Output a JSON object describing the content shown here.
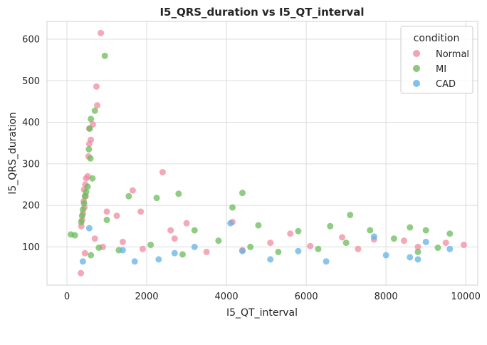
{
  "chart_data": {
    "type": "scatter",
    "title": "I5_QRS_duration vs I5_QT_interval",
    "xlabel": "I5_QT_interval",
    "ylabel": "I5_QRS_duration",
    "xlim": [
      -500,
      10300
    ],
    "ylim": [
      8,
      643
    ],
    "xticks": [
      0,
      2000,
      4000,
      6000,
      8000,
      10000
    ],
    "yticks": [
      100,
      200,
      300,
      400,
      500,
      600
    ],
    "grid": true,
    "legend": {
      "title": "condition",
      "position": "top-right"
    },
    "series": [
      {
        "name": "Normal",
        "color": "#f08ba0",
        "points": [
          [
            850,
            615
          ],
          [
            740,
            486
          ],
          [
            760,
            441
          ],
          [
            650,
            395
          ],
          [
            560,
            385
          ],
          [
            600,
            358
          ],
          [
            560,
            348
          ],
          [
            540,
            318
          ],
          [
            520,
            270
          ],
          [
            480,
            265
          ],
          [
            460,
            250
          ],
          [
            430,
            238
          ],
          [
            470,
            222
          ],
          [
            420,
            210
          ],
          [
            440,
            195
          ],
          [
            400,
            180
          ],
          [
            380,
            165
          ],
          [
            360,
            150
          ],
          [
            350,
            37
          ],
          [
            2400,
            280
          ],
          [
            1650,
            236
          ],
          [
            1850,
            185
          ],
          [
            1000,
            185
          ],
          [
            1250,
            175
          ],
          [
            3000,
            157
          ],
          [
            4150,
            160
          ],
          [
            2600,
            140
          ],
          [
            5600,
            132
          ],
          [
            6900,
            123
          ],
          [
            7700,
            118
          ],
          [
            8450,
            115
          ],
          [
            9500,
            110
          ],
          [
            9950,
            105
          ],
          [
            8800,
            100
          ],
          [
            7300,
            95
          ],
          [
            6100,
            102
          ],
          [
            5100,
            110
          ],
          [
            4400,
            92
          ],
          [
            3500,
            88
          ],
          [
            2700,
            120
          ],
          [
            1900,
            95
          ],
          [
            1400,
            112
          ],
          [
            900,
            100
          ],
          [
            700,
            120
          ],
          [
            450,
            85
          ]
        ]
      },
      {
        "name": "MI",
        "color": "#6abc5a",
        "points": [
          [
            950,
            560
          ],
          [
            700,
            428
          ],
          [
            600,
            408
          ],
          [
            570,
            385
          ],
          [
            550,
            335
          ],
          [
            590,
            313
          ],
          [
            640,
            265
          ],
          [
            520,
            245
          ],
          [
            480,
            232
          ],
          [
            450,
            222
          ],
          [
            430,
            205
          ],
          [
            400,
            190
          ],
          [
            380,
            175
          ],
          [
            360,
            160
          ],
          [
            1550,
            222
          ],
          [
            2250,
            218
          ],
          [
            2800,
            228
          ],
          [
            4400,
            230
          ],
          [
            4150,
            195
          ],
          [
            7100,
            177
          ],
          [
            1000,
            165
          ],
          [
            3200,
            140
          ],
          [
            4800,
            152
          ],
          [
            5800,
            138
          ],
          [
            6600,
            150
          ],
          [
            7600,
            140
          ],
          [
            8600,
            147
          ],
          [
            9000,
            140
          ],
          [
            9600,
            132
          ],
          [
            8200,
            120
          ],
          [
            7000,
            110
          ],
          [
            6300,
            95
          ],
          [
            5300,
            88
          ],
          [
            4600,
            100
          ],
          [
            3800,
            115
          ],
          [
            2900,
            82
          ],
          [
            2100,
            105
          ],
          [
            1300,
            92
          ],
          [
            800,
            98
          ],
          [
            600,
            80
          ],
          [
            100,
            130
          ],
          [
            200,
            128
          ],
          [
            9300,
            98
          ],
          [
            8800,
            88
          ]
        ]
      },
      {
        "name": "CAD",
        "color": "#63b1e6",
        "points": [
          [
            560,
            145
          ],
          [
            1400,
            92
          ],
          [
            2300,
            70
          ],
          [
            2700,
            85
          ],
          [
            3200,
            100
          ],
          [
            4100,
            157
          ],
          [
            4400,
            90
          ],
          [
            5100,
            70
          ],
          [
            5800,
            90
          ],
          [
            6500,
            65
          ],
          [
            7700,
            125
          ],
          [
            8000,
            80
          ],
          [
            8600,
            75
          ],
          [
            8800,
            70
          ],
          [
            9000,
            112
          ],
          [
            9600,
            95
          ],
          [
            1700,
            65
          ],
          [
            400,
            65
          ]
        ]
      }
    ]
  }
}
